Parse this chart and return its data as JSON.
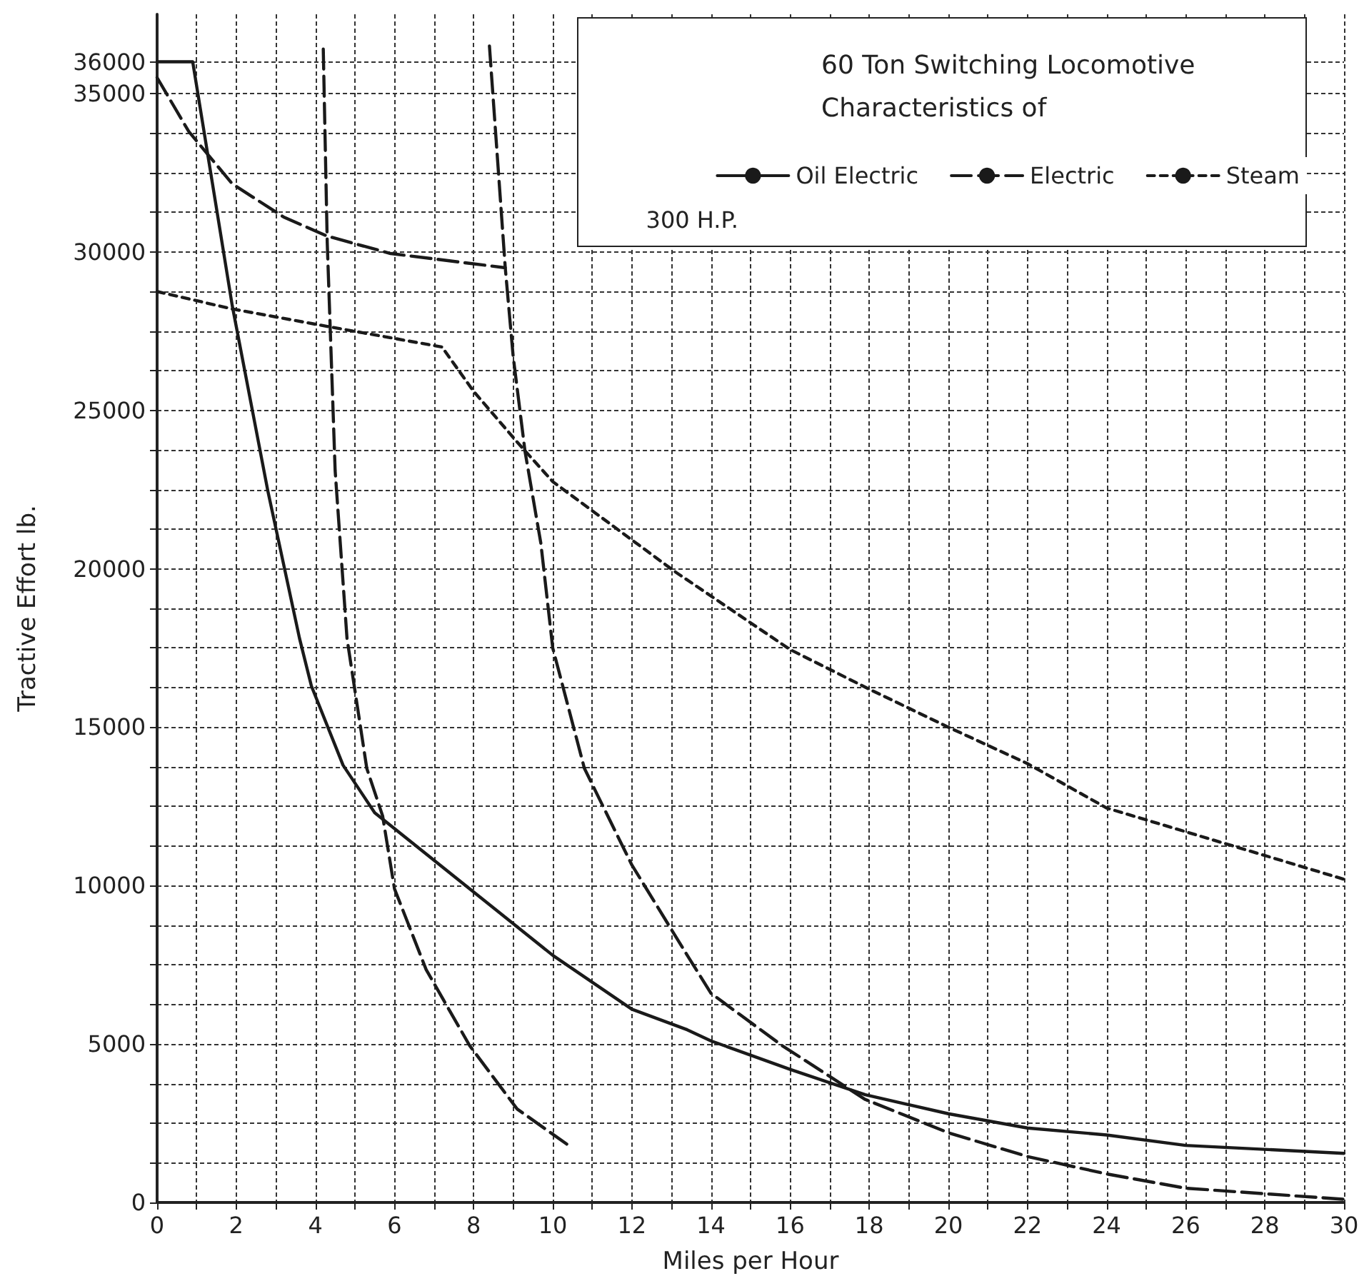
{
  "chart_data": {
    "type": "line",
    "title": "60 Ton Switching Locomotive Characteristics of",
    "xlabel": "Miles per Hour",
    "ylabel": "Tractive Effort lb.",
    "annotations": [
      "300 H.P."
    ],
    "xlim": [
      0,
      30
    ],
    "ylim": [
      0,
      37500
    ],
    "xticks": [
      0,
      {
        "value": 1,
        "label": null
      },
      2,
      {
        "value": 3,
        "label": null
      },
      4,
      {
        "value": 5,
        "label": null
      },
      6,
      {
        "value": 7,
        "label": null
      },
      8,
      {
        "value": 9,
        "label": null
      },
      10,
      {
        "value": 11,
        "label": null
      },
      12,
      {
        "value": 13,
        "label": null
      },
      14,
      {
        "value": 15,
        "label": null
      },
      16,
      {
        "value": 17,
        "label": null
      },
      18,
      {
        "value": 19,
        "label": null
      },
      20,
      {
        "value": 21,
        "label": null
      },
      22,
      {
        "value": 23,
        "label": null
      },
      24,
      {
        "value": 25,
        "label": null
      },
      26,
      {
        "value": 27,
        "label": null
      },
      28,
      {
        "value": 29,
        "label": null
      },
      30
    ],
    "yticks": [
      0,
      {
        "value": 1250,
        "label": null
      },
      {
        "value": 2500,
        "label": null
      },
      {
        "value": 3750,
        "label": null
      },
      5000,
      {
        "value": 6250,
        "label": null
      },
      {
        "value": 7500,
        "label": null
      },
      {
        "value": 8750,
        "label": null
      },
      10000,
      {
        "value": 11250,
        "label": null
      },
      {
        "value": 12500,
        "label": null
      },
      {
        "value": 13750,
        "label": null
      },
      15000,
      {
        "value": 16250,
        "label": null
      },
      {
        "value": 17500,
        "label": null
      },
      {
        "value": 18750,
        "label": null
      },
      20000,
      {
        "value": 21250,
        "label": null
      },
      {
        "value": 22500,
        "label": null
      },
      {
        "value": 23750,
        "label": null
      },
      25000,
      {
        "value": 26250,
        "label": null
      },
      {
        "value": 27500,
        "label": null
      },
      {
        "value": 28750,
        "label": null
      },
      30000,
      {
        "value": 31250,
        "label": null
      },
      {
        "value": 32500,
        "label": null
      },
      {
        "value": 33750,
        "label": null
      },
      35000,
      36000
    ],
    "grid": true,
    "legend": "top right",
    "marker": "none",
    "series": [
      {
        "name": "Oil Electric",
        "color": "#1a1a1a",
        "line_style": "solid",
        "x": [
          0,
          0.9,
          1.9,
          2.8,
          3.6,
          3.9,
          4.7,
          5.5,
          7.9,
          10,
          12,
          13.4,
          14,
          16,
          17.9,
          20,
          22,
          24,
          26,
          30
        ],
        "values": [
          36000,
          36000,
          28300,
          22450,
          17800,
          16300,
          13800,
          12300,
          9900,
          7800,
          6100,
          5450,
          5100,
          4200,
          3400,
          2800,
          2350,
          2130,
          1800,
          1550
        ]
      },
      {
        "name": "Electric",
        "color": "#1a1a1a",
        "line_style": "dashed",
        "x": [
          0,
          0.8,
          1.9,
          3.2,
          4.3,
          5.9,
          8.8,
          9,
          9.3,
          9.7,
          10,
          10.8,
          12,
          13.4,
          14,
          15.8,
          17.9,
          20,
          22,
          24,
          26,
          30
        ],
        "values": [
          35500,
          33800,
          32150,
          31100,
          30500,
          29950,
          29500,
          26700,
          23700,
          20800,
          17500,
          13700,
          10650,
          7800,
          6600,
          4950,
          3250,
          2200,
          1450,
          900,
          450,
          100
        ]
      },
      {
        "name": "Steam",
        "color": "#1a1a1a",
        "line_style": "dotted",
        "x": [
          0,
          1.9,
          4.3,
          7.2,
          8,
          9.1,
          10,
          13.1,
          16,
          18,
          20,
          22,
          24,
          26,
          30
        ],
        "values": [
          28750,
          28200,
          27650,
          27000,
          25600,
          24000,
          22750,
          19900,
          17450,
          16200,
          15000,
          13850,
          12450,
          11700,
          10200
        ]
      },
      {
        "color": "#1a1a1a",
        "line_style": "dashed",
        "x": [
          8.4,
          8.8
        ],
        "values": [
          36500,
          29500
        ]
      },
      {
        "color": "#1a1a1a",
        "line_style": "dashed",
        "x": [
          4.2,
          4.3,
          4.5,
          4.8,
          5.3,
          5.7,
          6,
          6.8,
          7.9,
          9.1,
          10.4
        ],
        "values": [
          36400,
          30300,
          23100,
          17800,
          13700,
          12200,
          9900,
          7350,
          4950,
          2950,
          1800
        ]
      }
    ]
  }
}
